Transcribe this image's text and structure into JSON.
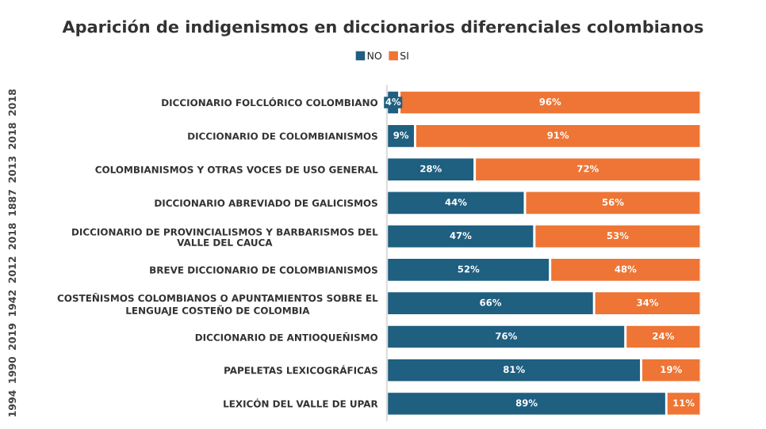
{
  "chart_data": {
    "type": "bar",
    "orientation": "horizontal",
    "stacked": true,
    "title": "Aparición de indigenismos en diccionarios diferenciales colombianos",
    "categories": [
      "DICCIONARIO FOLCLÓRICO COLOMBIANO",
      "DICCIONARIO DE COLOMBIANISMOS",
      "COLOMBIANISMOS Y OTRAS VOCES DE USO GENERAL",
      "DICCIONARIO ABREVIADO DE GALICISMOS",
      "DICCIONARIO DE PROVINCIALISMOS Y BARBARISMOS DEL VALLE DEL CAUCA",
      "BREVE DICCIONARIO DE COLOMBIANISMOS",
      "COSTEÑISMOS COLOMBIANOS O APUNTAMIENTOS SOBRE EL LENGUAJE COSTEÑO DE COLOMBIA",
      "DICCIONARIO DE ANTIOQUEÑISMO",
      "PAPELETAS LEXICOGRÁFICAS",
      "LEXICÓN DEL VALLE DE UPAR"
    ],
    "y2_categories": [
      "2018",
      "2018",
      "2013",
      "1887",
      "2018",
      "2012",
      "1942",
      "2019",
      "1990",
      "1994"
    ],
    "series": [
      {
        "name": "NO",
        "color": "#1f5f80",
        "values": [
          4,
          9,
          28,
          44,
          47,
          52,
          66,
          76,
          81,
          89
        ],
        "value_labels": [
          "4%",
          "9%",
          "28%",
          "44%",
          "47%",
          "52%",
          "66%",
          "76%",
          "81%",
          "89%"
        ]
      },
      {
        "name": "SI",
        "color": "#ee7535",
        "values": [
          96,
          91,
          72,
          56,
          53,
          48,
          34,
          24,
          19,
          11
        ],
        "value_labels": [
          "96%",
          "91%",
          "72%",
          "56%",
          "53%",
          "48%",
          "34%",
          "24%",
          "19%",
          "11%"
        ]
      }
    ],
    "legend": "top",
    "grid": false,
    "tick_labels": "y"
  }
}
